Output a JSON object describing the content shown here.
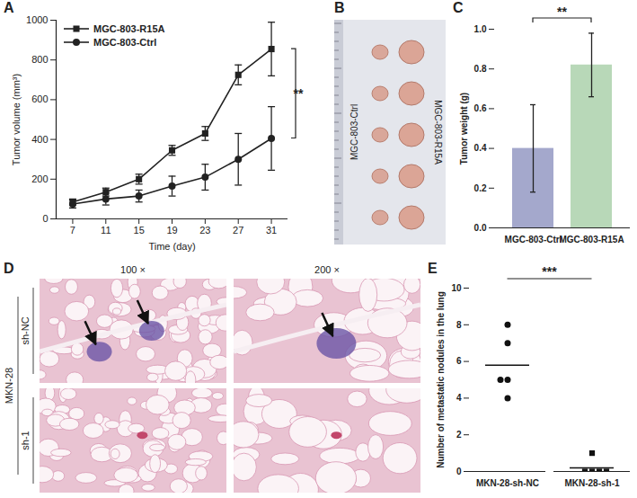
{
  "chart_data": [
    {
      "panel": "A",
      "type": "line",
      "x_label": "Time (day)",
      "y_label": "Tumor volume (mm³)",
      "x": [
        7,
        11,
        15,
        19,
        23,
        27,
        31
      ],
      "series": [
        {
          "name": "MGC-803-R15A",
          "marker": "square",
          "color": "#222222",
          "values": [
            85,
            135,
            200,
            345,
            430,
            725,
            855
          ],
          "errors": [
            15,
            20,
            25,
            25,
            35,
            50,
            135
          ]
        },
        {
          "name": "MGC-803-Ctrl",
          "marker": "circle",
          "color": "#222222",
          "values": [
            75,
            100,
            115,
            165,
            210,
            300,
            405
          ],
          "errors": [
            20,
            30,
            30,
            50,
            65,
            130,
            160
          ]
        }
      ],
      "xlim": [
        5,
        33
      ],
      "xticks": [
        7,
        11,
        15,
        19,
        23,
        27,
        31
      ],
      "ylim": [
        0,
        1000
      ],
      "yticks": [
        0,
        200,
        400,
        600,
        800,
        1000
      ],
      "legend": "top-left",
      "significance": "**"
    },
    {
      "panel": "C",
      "type": "bar",
      "y_label": "Tumor weight (g)",
      "categories": [
        "MGC-803-Ctrl",
        "MGC-803-R15A"
      ],
      "values": [
        0.4,
        0.82
      ],
      "errors": [
        0.22,
        0.16
      ],
      "colors": [
        "#a4a8cc",
        "#b8d8b8"
      ],
      "ylim": [
        0,
        1.0
      ],
      "yticks": [
        {
          "value": 0,
          "label": "0.0"
        },
        0.2,
        0.4,
        0.6,
        0.8,
        {
          "value": 1,
          "label": "1.0"
        }
      ],
      "significance": "**"
    },
    {
      "panel": "E",
      "type": "scatter",
      "y_label": "Number of metastatic nodules in the lung",
      "series": [
        {
          "name": "MKN-28-sh-NC",
          "marker": "circle",
          "color": "#111111",
          "values": [
            8,
            7,
            5,
            5,
            4
          ],
          "mean": 5.8
        },
        {
          "name": "MKN-28-sh-1",
          "marker": "square",
          "color": "#111111",
          "values": [
            1,
            0,
            0,
            0,
            0
          ],
          "mean": 0.2
        }
      ],
      "ylim": [
        0,
        10
      ],
      "yticks": [
        0,
        2,
        4,
        6,
        8,
        10
      ],
      "significance": "***"
    }
  ],
  "images": [
    {
      "panel": "B",
      "labels": [
        "MGC-803-Ctrl",
        "MGC-803-R15A"
      ]
    },
    {
      "panel": "D",
      "group": "MKN-28",
      "columns": [
        "100 ×",
        "200 ×"
      ],
      "rows": [
        "sh-NC",
        "sh-1"
      ]
    }
  ]
}
